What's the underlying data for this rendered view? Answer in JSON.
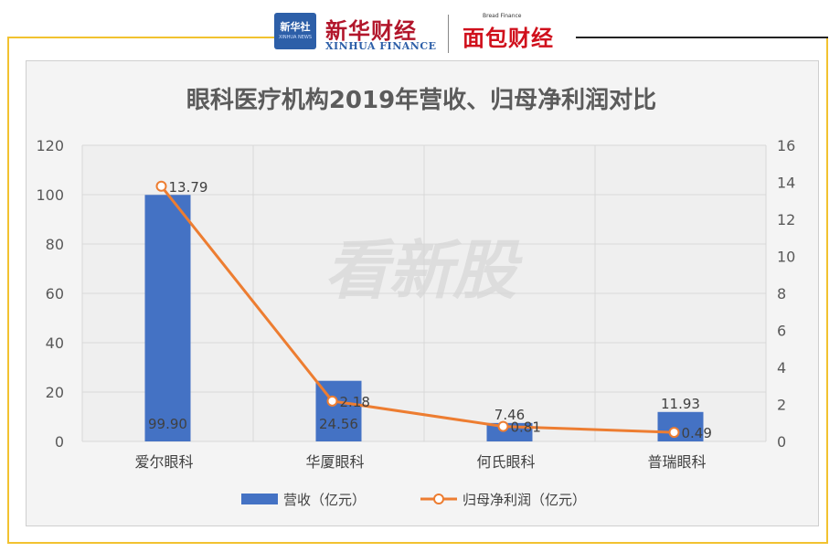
{
  "header": {
    "logo_box": "新华社",
    "logo_box_sub": "XINHUA NEWS",
    "xinhua_cn": "新华财经",
    "xinhua_en": "XINHUA FINANCE",
    "bread_en": "Bread Finance",
    "bread_cn": "面包财经"
  },
  "watermark": "看新股",
  "colors": {
    "bar": "#4472c4",
    "line": "#ed7d31",
    "frame": "#f2c230",
    "plot_bg": "#f4f4f4"
  },
  "chart_data": {
    "type": "bar",
    "title": "眼科医疗机构2019年营收、归母净利润对比",
    "categories": [
      "爱尔眼科",
      "华厦眼科",
      "何氏眼科",
      "普瑞眼科"
    ],
    "series": [
      {
        "name": "营收（亿元）",
        "type": "bar",
        "axis": "left",
        "values": [
          99.9,
          24.56,
          7.46,
          11.93
        ],
        "labels": [
          "99.90",
          "24.56",
          "7.46",
          "11.93"
        ]
      },
      {
        "name": "归母净利润（亿元）",
        "type": "line",
        "axis": "right",
        "values": [
          13.79,
          2.18,
          0.81,
          0.49
        ],
        "labels": [
          "13.79",
          "2.18",
          "0.81",
          "0.49"
        ]
      }
    ],
    "y_left": {
      "min": 0,
      "max": 120,
      "ticks": [
        "0",
        "20",
        "40",
        "60",
        "80",
        "100",
        "120"
      ]
    },
    "y_right": {
      "min": 0,
      "max": 16,
      "ticks": [
        "0",
        "2",
        "4",
        "6",
        "8",
        "10",
        "12",
        "14",
        "16"
      ]
    },
    "grid": true,
    "legend_position": "bottom"
  }
}
